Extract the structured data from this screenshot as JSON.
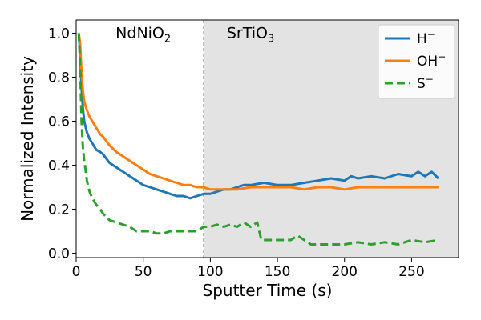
{
  "chart_data": {
    "type": "line",
    "xlabel": "Sputter Time (s)",
    "ylabel": "Normalized Intensity",
    "xlim": [
      0,
      285
    ],
    "ylim": [
      -0.02,
      1.06
    ],
    "xticks": [
      0,
      50,
      100,
      150,
      200,
      250
    ],
    "yticks": [
      0.0,
      0.2,
      0.4,
      0.6,
      0.8,
      1.0
    ],
    "ytick_labels": [
      "0.0",
      "0.2",
      "0.4",
      "0.6",
      "0.8",
      "1.0"
    ],
    "grid": false,
    "legend_position": "top-right",
    "interface_x": 95,
    "regions": [
      {
        "name": "NdNiO",
        "subscript": "2",
        "x_center": 50,
        "y": 1.0,
        "shaded": false
      },
      {
        "name": "SrTiO",
        "subscript": "3",
        "x_center": 130,
        "y": 1.0,
        "shaded": true,
        "shade_color": "#e3e3e3",
        "x_start": 95
      }
    ],
    "series": [
      {
        "name": "H",
        "superscript": "−",
        "color": "#1f77b4",
        "dash": "solid",
        "x": [
          2,
          3,
          4,
          5,
          6,
          8,
          10,
          12,
          15,
          18,
          20,
          25,
          30,
          35,
          40,
          45,
          50,
          55,
          60,
          65,
          70,
          75,
          80,
          85,
          90,
          95,
          100,
          105,
          110,
          115,
          120,
          125,
          130,
          140,
          150,
          160,
          170,
          180,
          190,
          200,
          205,
          210,
          220,
          230,
          240,
          250,
          255,
          260,
          265,
          270
        ],
        "y": [
          1.0,
          0.9,
          0.75,
          0.66,
          0.6,
          0.55,
          0.52,
          0.5,
          0.47,
          0.46,
          0.45,
          0.41,
          0.39,
          0.37,
          0.35,
          0.33,
          0.31,
          0.3,
          0.29,
          0.28,
          0.27,
          0.26,
          0.26,
          0.25,
          0.26,
          0.27,
          0.27,
          0.28,
          0.29,
          0.29,
          0.3,
          0.31,
          0.31,
          0.32,
          0.31,
          0.31,
          0.32,
          0.33,
          0.34,
          0.33,
          0.35,
          0.34,
          0.35,
          0.34,
          0.36,
          0.35,
          0.37,
          0.35,
          0.37,
          0.34
        ]
      },
      {
        "name": "OH",
        "superscript": "−",
        "color": "#ff7f0e",
        "dash": "solid",
        "x": [
          2,
          3,
          4,
          5,
          6,
          8,
          10,
          12,
          15,
          18,
          20,
          25,
          30,
          35,
          40,
          45,
          50,
          55,
          60,
          65,
          70,
          75,
          80,
          85,
          90,
          95,
          100,
          110,
          120,
          130,
          140,
          150,
          160,
          170,
          180,
          190,
          200,
          210,
          220,
          230,
          240,
          250,
          260,
          270
        ],
        "y": [
          1.0,
          0.95,
          0.82,
          0.74,
          0.69,
          0.65,
          0.62,
          0.6,
          0.57,
          0.54,
          0.53,
          0.49,
          0.46,
          0.44,
          0.42,
          0.4,
          0.38,
          0.36,
          0.35,
          0.34,
          0.33,
          0.32,
          0.31,
          0.31,
          0.3,
          0.3,
          0.29,
          0.29,
          0.29,
          0.3,
          0.3,
          0.3,
          0.3,
          0.29,
          0.3,
          0.3,
          0.29,
          0.3,
          0.3,
          0.3,
          0.3,
          0.3,
          0.3,
          0.3
        ]
      },
      {
        "name": "S",
        "superscript": "−",
        "color": "#2ca02c",
        "dash": "dashed",
        "x": [
          2,
          3,
          4,
          5,
          6,
          7,
          8,
          10,
          12,
          15,
          18,
          20,
          25,
          30,
          35,
          40,
          45,
          50,
          55,
          60,
          65,
          70,
          80,
          90,
          95,
          100,
          105,
          110,
          115,
          120,
          125,
          130,
          135,
          138,
          145,
          150,
          160,
          165,
          170,
          175,
          180,
          190,
          200,
          210,
          220,
          230,
          240,
          250,
          260,
          270
        ],
        "y": [
          1.0,
          0.85,
          0.6,
          0.48,
          0.42,
          0.38,
          0.33,
          0.28,
          0.25,
          0.22,
          0.2,
          0.18,
          0.15,
          0.14,
          0.13,
          0.12,
          0.1,
          0.1,
          0.1,
          0.09,
          0.09,
          0.1,
          0.1,
          0.1,
          0.12,
          0.12,
          0.13,
          0.12,
          0.13,
          0.12,
          0.14,
          0.12,
          0.14,
          0.06,
          0.06,
          0.06,
          0.06,
          0.08,
          0.06,
          0.04,
          0.04,
          0.04,
          0.04,
          0.05,
          0.04,
          0.05,
          0.04,
          0.06,
          0.05,
          0.06
        ]
      }
    ]
  }
}
